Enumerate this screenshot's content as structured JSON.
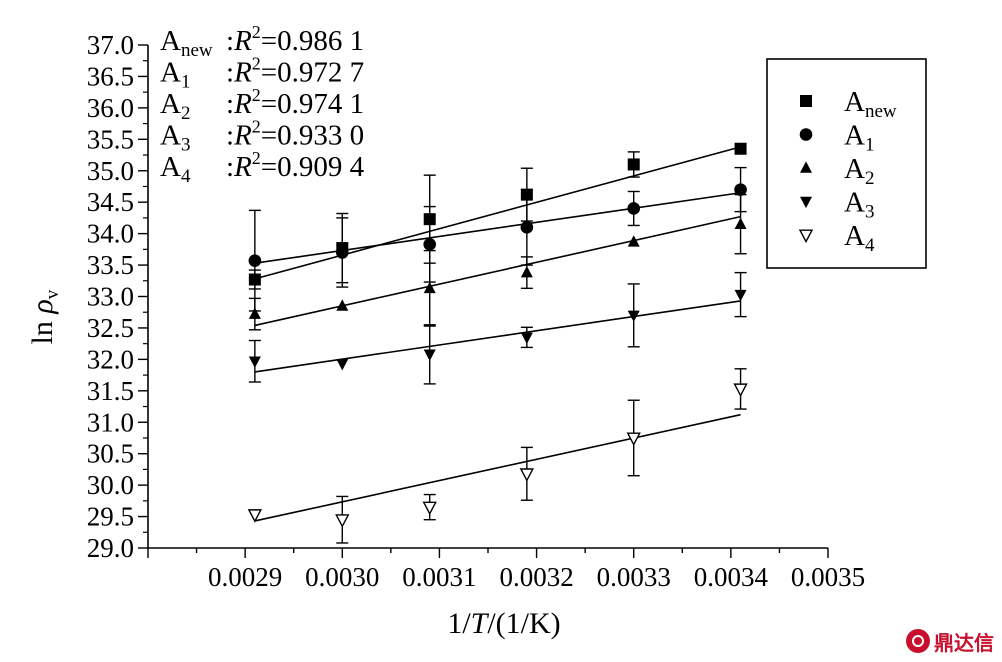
{
  "chart_data": {
    "type": "scatter",
    "xlabel_parts": [
      "1/",
      "T",
      "/(1/K)"
    ],
    "ylabel_parts": [
      "ln ",
      "ρ",
      "v"
    ],
    "xlim": [
      0.0028,
      0.0035
    ],
    "ylim": [
      29.0,
      37.0
    ],
    "x_ticks": [
      "0.0029",
      "0.0030",
      "0.0031",
      "0.0032",
      "0.0033",
      "0.0034",
      "0.0035"
    ],
    "y_ticks": [
      "29.0",
      "29.5",
      "30.0",
      "30.5",
      "31.0",
      "31.5",
      "32.0",
      "32.5",
      "33.0",
      "33.5",
      "34.0",
      "34.5",
      "35.0",
      "35.5",
      "36.0",
      "36.5",
      "37.0"
    ],
    "annotations": [
      {
        "series": "new",
        "r2_value": "=0.986 1"
      },
      {
        "series": "1",
        "r2_value": "=0.972 7"
      },
      {
        "series": "2",
        "r2_value": "=0.974 1"
      },
      {
        "series": "3",
        "r2_value": "=0.933 0"
      },
      {
        "series": "4",
        "r2_value": "=0.909 4"
      }
    ],
    "r2_label": "R",
    "r2_sup": "2",
    "series": [
      {
        "name": "A",
        "sub": "new",
        "marker": "square",
        "x": [
          0.00291,
          0.003,
          0.00309,
          0.00319,
          0.0033,
          0.00341
        ],
        "y": [
          33.27,
          33.77,
          34.23,
          34.62,
          35.1,
          35.35
        ],
        "err": [
          0.15,
          0.55,
          0.7,
          0.42,
          0.2,
          0.0
        ],
        "fit": [
          [
            0.00291,
            33.28
          ],
          [
            0.00341,
            35.38
          ]
        ]
      },
      {
        "name": "A",
        "sub": "1",
        "marker": "circle",
        "x": [
          0.00291,
          0.003,
          0.00309,
          0.00319,
          0.0033,
          0.00341
        ],
        "y": [
          33.57,
          33.7,
          33.83,
          34.1,
          34.4,
          34.7
        ],
        "err": [
          0.8,
          0.55,
          0.6,
          0.6,
          0.27,
          0.35
        ],
        "fit": [
          [
            0.00291,
            33.53
          ],
          [
            0.00341,
            34.65
          ]
        ]
      },
      {
        "name": "A",
        "sub": "2",
        "marker": "triangle-up",
        "x": [
          0.00291,
          0.003,
          0.00309,
          0.00319,
          0.0033,
          0.00341
        ],
        "y": [
          32.72,
          32.85,
          33.13,
          33.38,
          33.87,
          34.15
        ],
        "err": [
          0.25,
          0.0,
          0.6,
          0.25,
          0.0,
          0.47
        ],
        "fit": [
          [
            0.00291,
            32.54
          ],
          [
            0.00341,
            34.27
          ]
        ]
      },
      {
        "name": "A",
        "sub": "3",
        "marker": "triangle-down",
        "x": [
          0.00291,
          0.003,
          0.00309,
          0.00319,
          0.0033,
          0.00341
        ],
        "y": [
          31.97,
          31.93,
          32.08,
          32.35,
          32.7,
          33.03
        ],
        "err": [
          0.33,
          0.0,
          0.47,
          0.16,
          0.5,
          0.35
        ],
        "fit": [
          [
            0.00291,
            31.8
          ],
          [
            0.00341,
            32.93
          ]
        ]
      },
      {
        "name": "A",
        "sub": "4",
        "marker": "triangle-down-open",
        "x": [
          0.00291,
          0.003,
          0.00309,
          0.00319,
          0.0033,
          0.00341
        ],
        "y": [
          29.53,
          29.45,
          29.65,
          30.18,
          30.75,
          31.53
        ],
        "err": [
          0.0,
          0.37,
          0.2,
          0.42,
          0.6,
          0.32
        ],
        "fit": [
          [
            0.00291,
            29.43
          ],
          [
            0.00341,
            31.12
          ]
        ]
      }
    ]
  },
  "logo": {
    "text": "鼎达信"
  }
}
